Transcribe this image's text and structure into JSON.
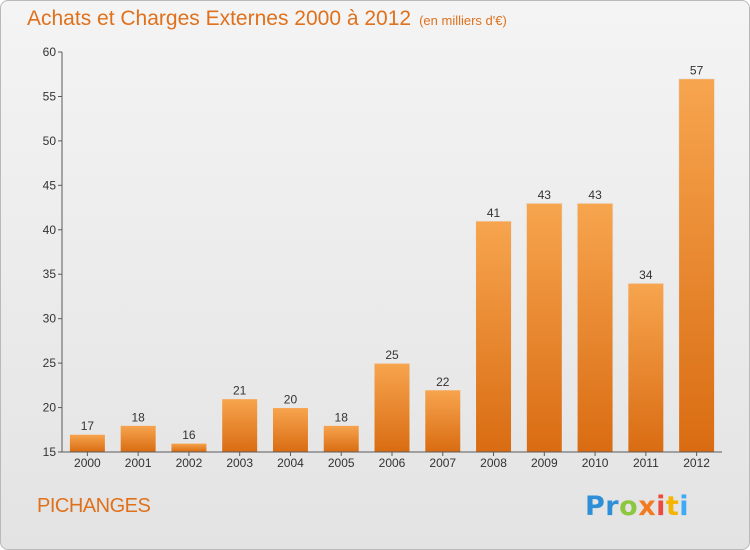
{
  "title": "Achats et Charges Externes 2000 à 2012",
  "subtitle": "(en milliers d'€)",
  "commune": "PICHANGES",
  "logo": {
    "letters": [
      "P",
      "r",
      "o",
      "x",
      "i",
      "t",
      "i"
    ],
    "colors": [
      "#2e8fd6",
      "#2e8fd6",
      "#8dc63f",
      "#f47a20",
      "#e84c3d",
      "#f4b400",
      "#3fa9f5"
    ]
  },
  "colors": {
    "bar_light": "#f7a54f",
    "bar_dark": "#d96c12",
    "title": "#e0711c"
  },
  "chart_data": {
    "type": "bar",
    "categories": [
      "2000",
      "2001",
      "2002",
      "2003",
      "2004",
      "2005",
      "2006",
      "2007",
      "2008",
      "2009",
      "2010",
      "2011",
      "2012"
    ],
    "values": [
      17,
      18,
      16,
      21,
      20,
      18,
      25,
      22,
      41,
      43,
      43,
      34,
      57
    ],
    "ylim": [
      15,
      60
    ],
    "yticks": [
      15,
      20,
      25,
      30,
      35,
      40,
      45,
      50,
      55,
      60
    ],
    "grid": false
  }
}
